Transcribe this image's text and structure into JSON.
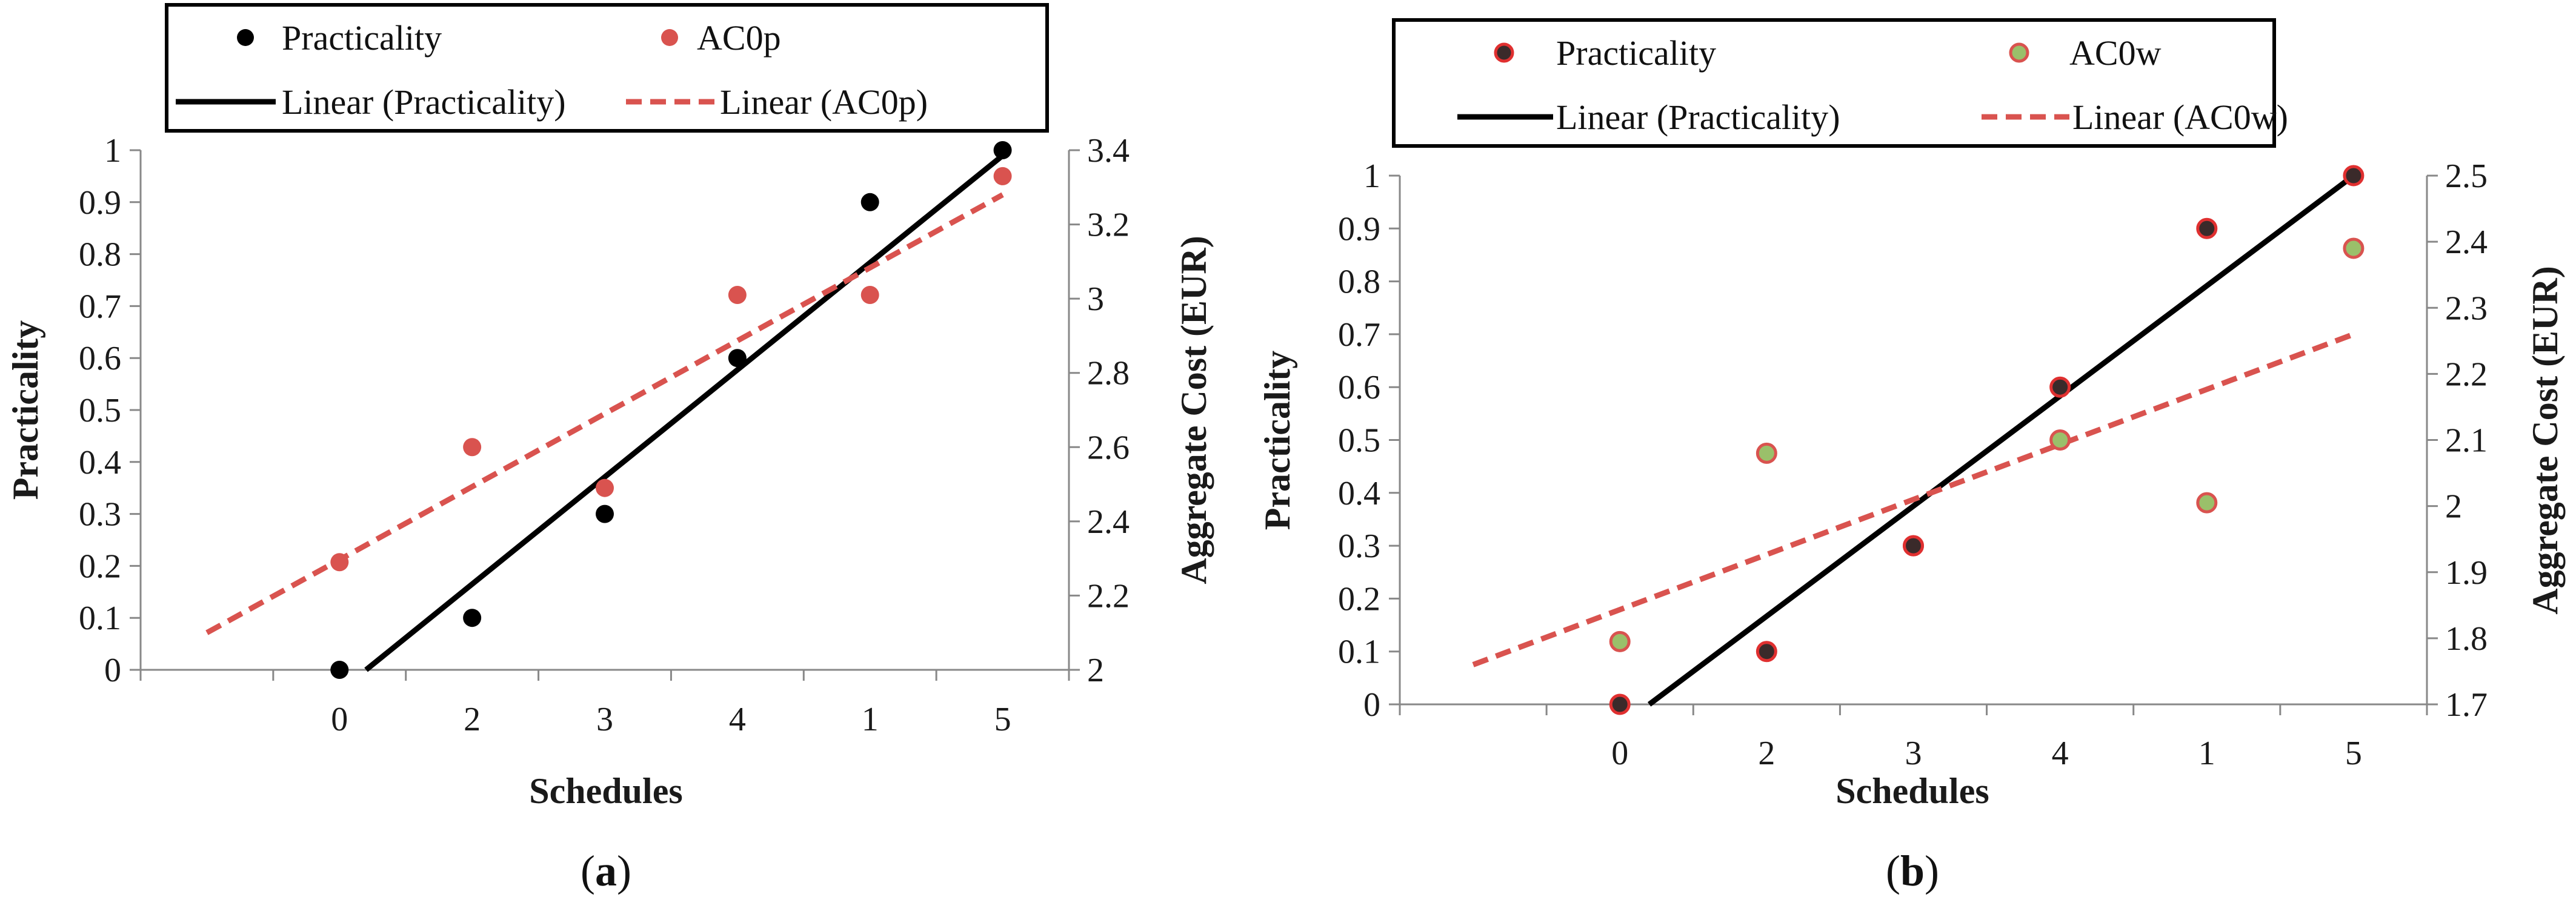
{
  "chart_data": [
    {
      "id": "a",
      "type": "scatter",
      "caption_letter": "a",
      "xlabel": "Schedules",
      "ylabel_left": "Practicality",
      "ylabel_right": "Aggregate Cost (EUR)",
      "categories": [
        "",
        "0",
        "2",
        "3",
        "4",
        "1",
        "5"
      ],
      "ylim_left": [
        0,
        1
      ],
      "yticks_left": [
        "0",
        "0.1",
        "0.2",
        "0.3",
        "0.4",
        "0.5",
        "0.6",
        "0.7",
        "0.8",
        "0.9",
        "1"
      ],
      "ylim_right": [
        2,
        3.4
      ],
      "yticks_right": [
        "2",
        "2.2",
        "2.4",
        "2.6",
        "2.8",
        "3",
        "3.2",
        "3.4"
      ],
      "legend": {
        "series1": "Practicality",
        "series2": "AC0p",
        "trend1": "Linear (Practicality)",
        "trend2": "Linear (AC0p)"
      },
      "series": [
        {
          "name": "Practicality",
          "axis": "left",
          "color": "#000000",
          "edge": "#000000",
          "x": [
            1,
            2,
            3,
            4,
            5,
            6
          ],
          "values": [
            0,
            0.1,
            0.3,
            0.6,
            0.9,
            1.0
          ]
        },
        {
          "name": "AC0p",
          "axis": "right",
          "color": "#d9534f",
          "edge": "#d9534f",
          "x": [
            1,
            2,
            3,
            4,
            5,
            6
          ],
          "values": [
            2.29,
            2.6,
            2.49,
            3.01,
            3.01,
            3.33
          ]
        }
      ],
      "trendlines": [
        {
          "name": "Linear (Practicality)",
          "axis": "left",
          "color": "#000000",
          "dashed": false,
          "x": [
            1.2,
            6.05
          ],
          "values": [
            0,
            1.0
          ]
        },
        {
          "name": "Linear (AC0p)",
          "axis": "right",
          "color": "#d9534f",
          "dashed": true,
          "x": [
            0,
            6
          ],
          "values": [
            2.1,
            3.28
          ]
        }
      ]
    },
    {
      "id": "b",
      "type": "scatter",
      "caption_letter": "b",
      "xlabel": "Schedules",
      "ylabel_left": "Practicality",
      "ylabel_right": "Aggregate Cost (EUR)",
      "categories": [
        "",
        "0",
        "2",
        "3",
        "4",
        "1",
        "5"
      ],
      "ylim_left": [
        0,
        1
      ],
      "yticks_left": [
        "0",
        "0.1",
        "0.2",
        "0.3",
        "0.4",
        "0.5",
        "0.6",
        "0.7",
        "0.8",
        "0.9",
        "1"
      ],
      "ylim_right": [
        1.7,
        2.5
      ],
      "yticks_right": [
        "1.7",
        "1.8",
        "1.9",
        "2",
        "2.1",
        "2.2",
        "2.3",
        "2.4",
        "2.5"
      ],
      "legend": {
        "series1": "Practicality",
        "series2": "AC0w",
        "trend1": "Linear (Practicality)",
        "trend2": "Linear (AC0w)"
      },
      "series": [
        {
          "name": "Practicality",
          "axis": "left",
          "color": "#3a2a2a",
          "edge": "#e03030",
          "x": [
            1,
            2,
            3,
            4,
            5,
            6
          ],
          "values": [
            0,
            0.1,
            0.3,
            0.6,
            0.9,
            1.0
          ]
        },
        {
          "name": "AC0w",
          "axis": "right",
          "color": "#9ac06a",
          "edge": "#d9534f",
          "x": [
            1,
            2,
            3,
            4,
            5,
            6
          ],
          "values": [
            1.795,
            2.08,
            1.94,
            2.1,
            2.005,
            2.39
          ]
        }
      ],
      "trendlines": [
        {
          "name": "Linear (Practicality)",
          "axis": "left",
          "color": "#000000",
          "dashed": false,
          "x": [
            1.2,
            6.0
          ],
          "values": [
            0,
            1.0
          ]
        },
        {
          "name": "Linear (AC0w)",
          "axis": "right",
          "color": "#d9534f",
          "dashed": true,
          "x": [
            0,
            6
          ],
          "values": [
            1.76,
            2.26
          ]
        }
      ]
    }
  ]
}
